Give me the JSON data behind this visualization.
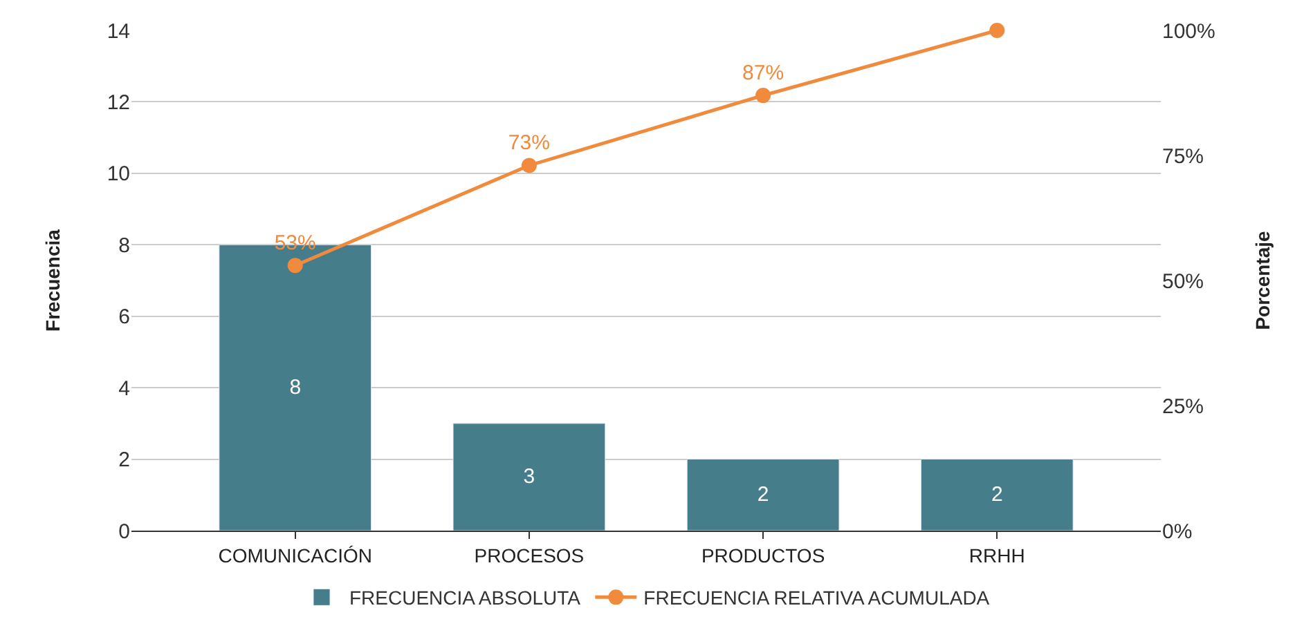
{
  "chart_data": {
    "type": "bar",
    "categories": [
      "COMUNICACIÓN",
      "PROCESOS",
      "PRODUCTOS",
      "RRHH"
    ],
    "ylabel": "Frecuencia",
    "y2label": "Porcentaje",
    "ylim": [
      0,
      14
    ],
    "yticks": [
      0,
      2,
      4,
      6,
      8,
      10,
      12,
      14
    ],
    "y2lim": [
      0,
      100
    ],
    "y2ticks": [
      {
        "value": 0,
        "label": "0%"
      },
      {
        "value": 25,
        "label": "25%"
      },
      {
        "value": 50,
        "label": "50%"
      },
      {
        "value": 75,
        "label": "75%"
      },
      {
        "value": 100,
        "label": "100%"
      }
    ],
    "grid": "y",
    "legend": "bottom",
    "series": [
      {
        "name": "FRECUENCIA ABSOLUTA",
        "color": "#467d8a",
        "values": [
          8,
          3,
          2,
          2
        ],
        "data_labels": true
      },
      {
        "name": "FRECUENCIA RELATIVA ACUMULADA",
        "type": "line",
        "axis": "y2",
        "color": "#f08a3c",
        "values": [
          53,
          73,
          87,
          100
        ],
        "value_labels": [
          "53%",
          "73%",
          "87%",
          null
        ],
        "marker": "circle"
      }
    ]
  }
}
